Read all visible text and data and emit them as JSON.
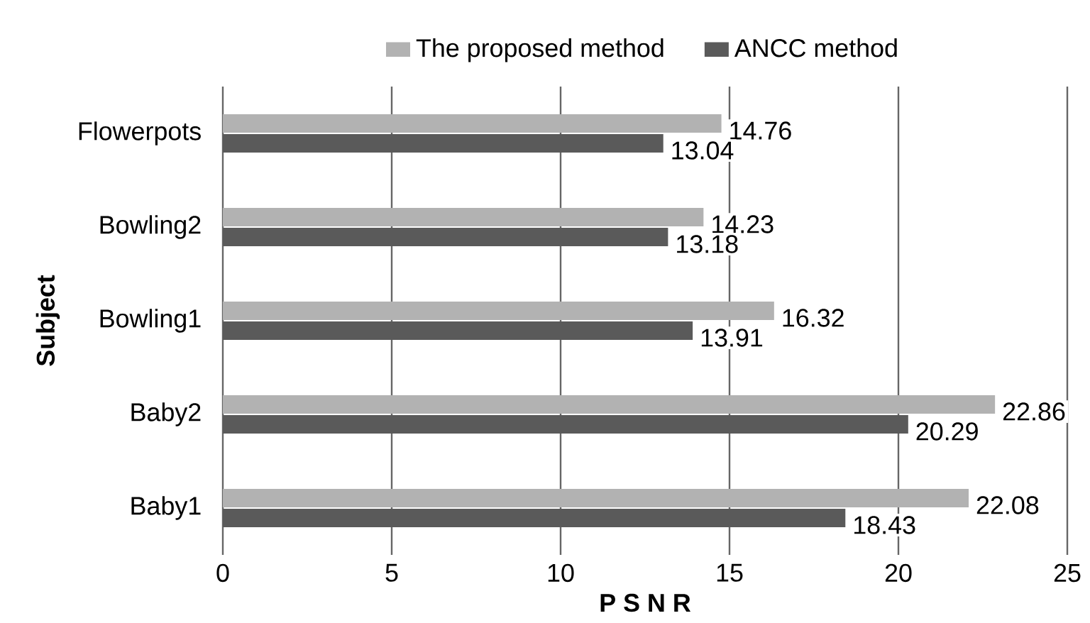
{
  "chart_data": {
    "type": "bar",
    "orientation": "horizontal",
    "xlabel": "P S N R",
    "ylabel": "Subject",
    "categories": [
      "Flowerpots",
      "Bowling2",
      "Bowling1",
      "Baby2",
      "Baby1"
    ],
    "series": [
      {
        "name": "The proposed method",
        "color": "#b2b2b2",
        "values": [
          14.76,
          14.23,
          16.32,
          22.86,
          22.08
        ]
      },
      {
        "name": "ANCC method",
        "color": "#5a5a5a",
        "values": [
          13.04,
          13.18,
          13.91,
          20.29,
          18.43
        ]
      }
    ],
    "xlim": [
      0,
      25
    ],
    "xticks": [
      0,
      5,
      10,
      15,
      20,
      25
    ],
    "grid": "x",
    "legend": "top",
    "data_labels": true
  }
}
